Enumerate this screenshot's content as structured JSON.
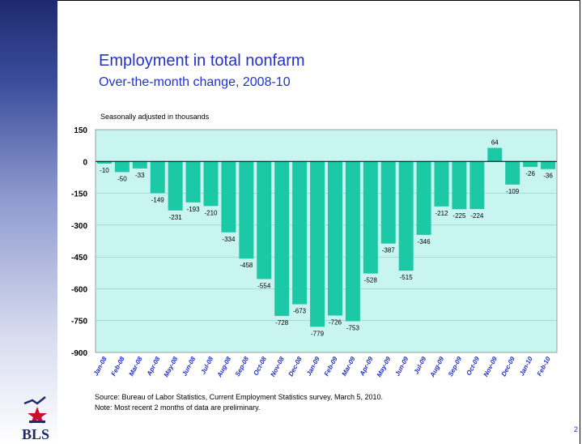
{
  "slide": {
    "title": "Employment in total nonfarm",
    "subtitle": "Over-the-month change, 2008-10",
    "units_note": "Seasonally adjusted in thousands",
    "source": "Source:  Bureau of Labor Statistics, Current Employment Statistics survey, March 5, 2010.",
    "note": "Note:  Most recent 2 months of data are preliminary.",
    "page_number": "2",
    "logo_text": "BLS"
  },
  "colors": {
    "title": "#2233cc",
    "plot_background": "#c9f5f1",
    "bar_fill": "#1cc9a6",
    "x_tick_label": "#1f2fbf"
  },
  "chart_data": {
    "type": "bar",
    "categories": [
      "Jan-08",
      "Feb-08",
      "Mar-08",
      "Apr-08",
      "May-08",
      "Jun-08",
      "Jul-08",
      "Aug-08",
      "Sep-08",
      "Oct-08",
      "Nov-08",
      "Dec-08",
      "Jan-09",
      "Feb-09",
      "Mar-09",
      "Apr-09",
      "May-09",
      "Jun-09",
      "Jul-09",
      "Aug-09",
      "Sep-09",
      "Oct-09",
      "Nov-09",
      "Dec-09",
      "Jan-10",
      "Feb-10"
    ],
    "values": [
      -10,
      -50,
      -33,
      -149,
      -231,
      -193,
      -210,
      -334,
      -458,
      -554,
      -728,
      -673,
      -779,
      -726,
      -753,
      -528,
      -387,
      -515,
      -346,
      -212,
      -225,
      -224,
      64,
      -109,
      -26,
      -36
    ],
    "ylim": [
      -900,
      150
    ],
    "yticks": [
      150,
      0,
      -150,
      -300,
      -450,
      -600,
      -750,
      -900
    ],
    "ytick_labels": [
      "150",
      "0",
      "-150",
      "-300",
      "-450",
      "-600",
      "-750",
      "-900"
    ],
    "grid": true,
    "data_labels": true
  }
}
